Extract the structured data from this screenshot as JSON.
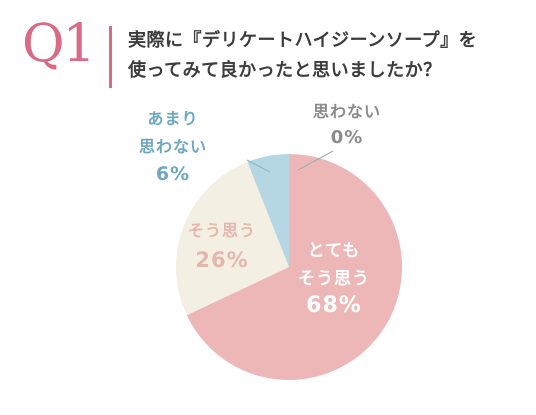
{
  "header": {
    "q_number": "Q1",
    "question_line1": "実際に『デリケートハイジーンソープ』を",
    "question_line2": "使ってみて良かったと思いましたか？"
  },
  "colors": {
    "accent": "#d96b86",
    "slice_very": "#edb7b8",
    "slice_yes": "#f4efe3",
    "slice_not_much": "#b5d7e3",
    "slice_no": "#d9d9d9"
  },
  "chart_data": {
    "type": "pie",
    "start": "12 o'clock, clockwise",
    "slices": [
      {
        "label_lines": [
          "とても",
          "そう思う"
        ],
        "value": 68,
        "value_label": "68%",
        "color": "#edb7b8",
        "label_color": "#ffffff"
      },
      {
        "label_lines": [
          "そう思う"
        ],
        "value": 26,
        "value_label": "26%",
        "color": "#f4efe3",
        "label_color": "#e4b6ae"
      },
      {
        "label_lines": [
          "あまり",
          "思わない"
        ],
        "value": 6,
        "value_label": "6%",
        "color": "#b5d7e3",
        "label_color": "#6da8c2"
      },
      {
        "label_lines": [
          "思わない"
        ],
        "value": 0,
        "value_label": "0%",
        "color": "#d9d9d9",
        "label_color": "#8a8a8a"
      }
    ]
  }
}
